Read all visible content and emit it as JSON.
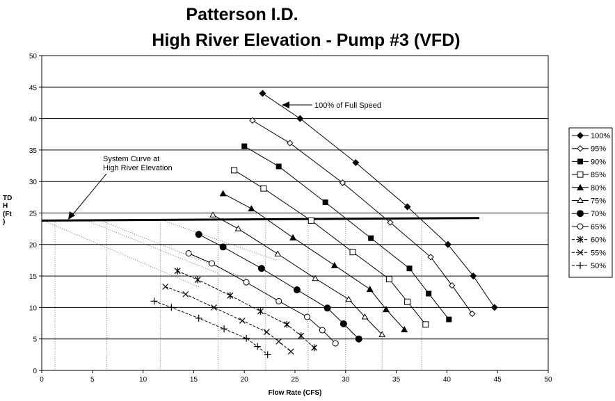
{
  "chart_data": {
    "type": "line",
    "title_line1": "Patterson I.D.",
    "title_line2": "High River Elevation - Pump #3 (VFD)",
    "xlabel": "Flow Rate (CFS)",
    "ylabel": [
      "TD",
      "H",
      "(Ft",
      ")"
    ],
    "xlim": [
      0,
      50
    ],
    "ylim": [
      0,
      50
    ],
    "xticks": [
      0,
      5,
      10,
      15,
      20,
      25,
      30,
      35,
      40,
      45,
      50
    ],
    "yticks": [
      0,
      5,
      10,
      15,
      20,
      25,
      30,
      35,
      40,
      45,
      50
    ],
    "grid": "horizontal",
    "legend_position": "right",
    "series": [
      {
        "name": "100%",
        "marker": "diamond-filled",
        "points": [
          [
            21.8,
            44.0
          ],
          [
            25.5,
            40.0
          ],
          [
            31.0,
            33.0
          ],
          [
            36.1,
            26.0
          ],
          [
            40.1,
            20.0
          ],
          [
            42.6,
            15.0
          ],
          [
            44.7,
            10.0
          ]
        ]
      },
      {
        "name": "95%",
        "marker": "diamond-open",
        "points": [
          [
            20.8,
            39.7
          ],
          [
            24.5,
            36.1
          ],
          [
            29.7,
            29.8
          ],
          [
            34.4,
            23.5
          ],
          [
            38.4,
            18.0
          ],
          [
            40.5,
            13.5
          ],
          [
            42.5,
            9.0
          ]
        ]
      },
      {
        "name": "90%",
        "marker": "square-filled",
        "points": [
          [
            20.0,
            35.6
          ],
          [
            23.4,
            32.4
          ],
          [
            28.0,
            26.7
          ],
          [
            32.5,
            21.0
          ],
          [
            36.3,
            16.2
          ],
          [
            38.2,
            12.2
          ],
          [
            40.2,
            8.1
          ]
        ]
      },
      {
        "name": "85%",
        "marker": "square-open",
        "points": [
          [
            19.0,
            31.8
          ],
          [
            21.9,
            28.9
          ],
          [
            26.6,
            23.8
          ],
          [
            30.7,
            18.8
          ],
          [
            34.3,
            14.5
          ],
          [
            36.1,
            10.9
          ],
          [
            37.9,
            7.3
          ]
        ]
      },
      {
        "name": "80%",
        "marker": "triangle-filled",
        "points": [
          [
            17.9,
            28.1
          ],
          [
            20.7,
            25.7
          ],
          [
            24.8,
            21.1
          ],
          [
            28.9,
            16.7
          ],
          [
            32.4,
            12.9
          ],
          [
            34.0,
            9.7
          ],
          [
            35.8,
            6.5
          ]
        ]
      },
      {
        "name": "75%",
        "marker": "triangle-open",
        "points": [
          [
            16.9,
            24.7
          ],
          [
            19.4,
            22.5
          ],
          [
            23.3,
            18.5
          ],
          [
            27.0,
            14.6
          ],
          [
            30.3,
            11.3
          ],
          [
            31.9,
            8.5
          ],
          [
            33.6,
            5.7
          ]
        ]
      },
      {
        "name": "70%",
        "marker": "circle-filled",
        "points": [
          [
            15.5,
            21.6
          ],
          [
            17.9,
            19.6
          ],
          [
            21.7,
            16.2
          ],
          [
            25.2,
            12.8
          ],
          [
            28.2,
            9.9
          ],
          [
            29.8,
            7.4
          ],
          [
            31.3,
            5.0
          ]
        ]
      },
      {
        "name": "65%",
        "marker": "circle-open",
        "points": [
          [
            14.5,
            18.6
          ],
          [
            16.8,
            17.0
          ],
          [
            20.2,
            14.0
          ],
          [
            23.4,
            11.0
          ],
          [
            26.2,
            8.5
          ],
          [
            27.7,
            6.4
          ],
          [
            29.0,
            4.3
          ]
        ]
      },
      {
        "name": "60%",
        "marker": "asterisk",
        "points": [
          [
            13.4,
            15.8
          ],
          [
            15.4,
            14.4
          ],
          [
            18.6,
            11.9
          ],
          [
            21.6,
            9.4
          ],
          [
            24.2,
            7.3
          ],
          [
            25.6,
            5.5
          ],
          [
            26.9,
            3.6
          ]
        ]
      },
      {
        "name": "55%",
        "marker": "x",
        "points": [
          [
            12.2,
            13.3
          ],
          [
            14.2,
            12.1
          ],
          [
            17.0,
            10.0
          ],
          [
            19.8,
            7.9
          ],
          [
            22.2,
            6.1
          ],
          [
            23.4,
            4.6
          ],
          [
            24.6,
            3.0
          ]
        ]
      },
      {
        "name": "50%",
        "marker": "plus",
        "points": [
          [
            11.1,
            11.0
          ],
          [
            12.8,
            10.0
          ],
          [
            15.5,
            8.3
          ],
          [
            18.0,
            6.6
          ],
          [
            20.2,
            5.1
          ],
          [
            21.3,
            3.8
          ],
          [
            22.3,
            2.5
          ]
        ]
      }
    ],
    "system_curve": {
      "points": [
        [
          0,
          23.8
        ],
        [
          43.2,
          24.2
        ]
      ]
    },
    "dotted_system_lines": [
      {
        "points": [
          [
            0.3,
            23.7
          ],
          [
            15.6,
            13.2
          ]
        ]
      },
      {
        "points": [
          [
            4.3,
            23.9
          ],
          [
            17.6,
            15.3
          ]
        ]
      },
      {
        "points": [
          [
            5.5,
            24.0
          ],
          [
            20.2,
            14.6
          ]
        ]
      },
      {
        "points": [
          [
            11.6,
            24.0
          ],
          [
            23.2,
            17.5
          ]
        ]
      }
    ],
    "vertical_dotted_x": [
      1.3,
      6.4,
      11.7,
      17.4,
      22.1,
      26.3,
      30.0,
      33.6,
      37.5
    ],
    "annotations": {
      "system_curve_label": [
        "System Curve at",
        "High River Elevation"
      ],
      "full_speed_label": "100% of Full Speed"
    }
  }
}
